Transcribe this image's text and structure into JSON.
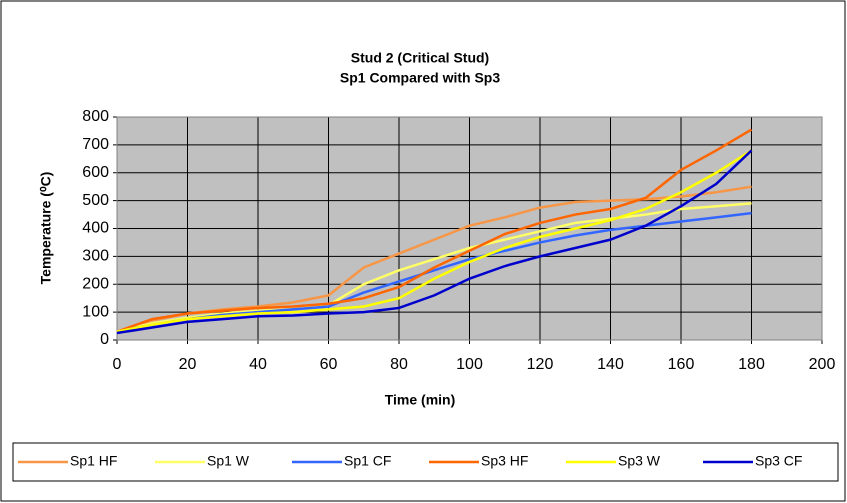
{
  "chart_data": {
    "type": "line",
    "title": "Stud 2 (Critical Stud)",
    "subtitle": "Sp1 Compared with Sp3",
    "x_label": "Time (min)",
    "y_label": "Temperature (⁰C)",
    "x": [
      0,
      10,
      20,
      30,
      40,
      50,
      60,
      70,
      80,
      90,
      100,
      110,
      120,
      130,
      140,
      150,
      160,
      170,
      180
    ],
    "series": [
      {
        "name": "Sp1 HF",
        "color": "#f79646",
        "values": [
          30,
          70,
          95,
          110,
          120,
          135,
          160,
          260,
          310,
          360,
          410,
          440,
          475,
          495,
          500,
          505,
          515,
          530,
          550
        ]
      },
      {
        "name": "Sp1 W",
        "color": "#ffff66",
        "values": [
          30,
          60,
          80,
          95,
          105,
          110,
          125,
          200,
          250,
          290,
          330,
          360,
          390,
          420,
          435,
          450,
          470,
          480,
          490
        ]
      },
      {
        "name": "Sp1 CF",
        "color": "#3366ff",
        "values": [
          30,
          55,
          75,
          90,
          100,
          110,
          120,
          170,
          210,
          250,
          290,
          320,
          350,
          375,
          395,
          410,
          425,
          440,
          455
        ]
      },
      {
        "name": "Sp3 HF",
        "color": "#ff6600",
        "values": [
          30,
          75,
          95,
          105,
          115,
          120,
          130,
          150,
          190,
          260,
          320,
          380,
          420,
          450,
          470,
          510,
          610,
          680,
          755
        ]
      },
      {
        "name": "Sp3 W",
        "color": "#ffff00",
        "values": [
          30,
          55,
          75,
          85,
          95,
          100,
          110,
          120,
          150,
          220,
          280,
          330,
          370,
          400,
          430,
          470,
          530,
          600,
          680
        ]
      },
      {
        "name": "Sp3 CF",
        "color": "#0000cc",
        "values": [
          25,
          45,
          65,
          75,
          85,
          88,
          95,
          100,
          115,
          160,
          220,
          265,
          300,
          330,
          360,
          410,
          480,
          560,
          680
        ]
      }
    ],
    "xlim": [
      0,
      200
    ],
    "xticks": [
      0,
      20,
      40,
      60,
      80,
      100,
      120,
      140,
      160,
      180,
      200
    ],
    "ylim": [
      0,
      800
    ],
    "yticks": [
      0,
      100,
      200,
      300,
      400,
      500,
      600,
      700,
      800
    ],
    "grid": true,
    "legend": "bottom"
  }
}
